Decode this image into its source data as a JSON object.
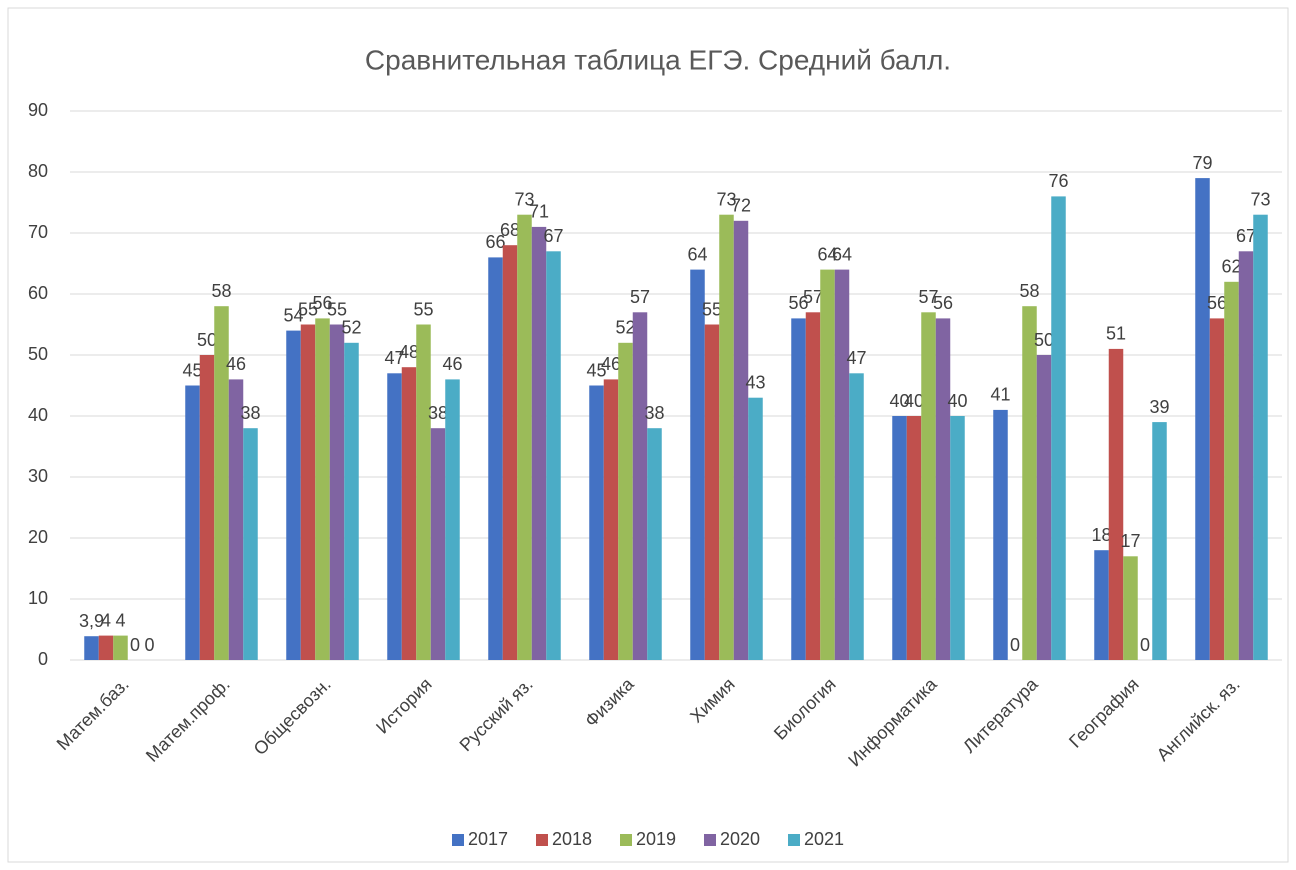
{
  "chart_data": {
    "type": "bar",
    "title": "Сравнительная таблица ЕГЭ. Средний балл.",
    "categories": [
      "Матем.баз.",
      "Матем.проф.",
      "Общесвозн.",
      "История",
      "Русский яз.",
      "Физика",
      "Химия",
      "Биология",
      "Информатика",
      "Литература",
      "География",
      "Английск. яз."
    ],
    "series": [
      {
        "name": "2017",
        "color": "#4472c4",
        "values": [
          3.9,
          45,
          54,
          47,
          66,
          45,
          64,
          56,
          40,
          41,
          18,
          79
        ],
        "value_labels": [
          "3,9",
          "45",
          "54",
          "47",
          "66",
          "45",
          "64",
          "56",
          "40",
          "41",
          "18",
          "79"
        ]
      },
      {
        "name": "2018",
        "color": "#c0504d",
        "values": [
          4,
          50,
          55,
          48,
          68,
          46,
          55,
          57,
          40,
          0,
          51,
          56
        ]
      },
      {
        "name": "2019",
        "color": "#9bbb59",
        "values": [
          4,
          58,
          56,
          55,
          73,
          52,
          73,
          64,
          57,
          58,
          17,
          62
        ]
      },
      {
        "name": "2020",
        "color": "#8064a2",
        "values": [
          0,
          46,
          55,
          38,
          71,
          57,
          72,
          64,
          56,
          50,
          0,
          67
        ]
      },
      {
        "name": "2021",
        "color": "#4bacc6",
        "values": [
          0,
          38,
          52,
          46,
          67,
          38,
          43,
          47,
          40,
          76,
          39,
          73
        ]
      }
    ],
    "ylim": [
      0,
      90
    ],
    "yticks": [
      0,
      10,
      20,
      30,
      40,
      50,
      60,
      70,
      80,
      90
    ],
    "grid": true,
    "legend": "bottom"
  }
}
